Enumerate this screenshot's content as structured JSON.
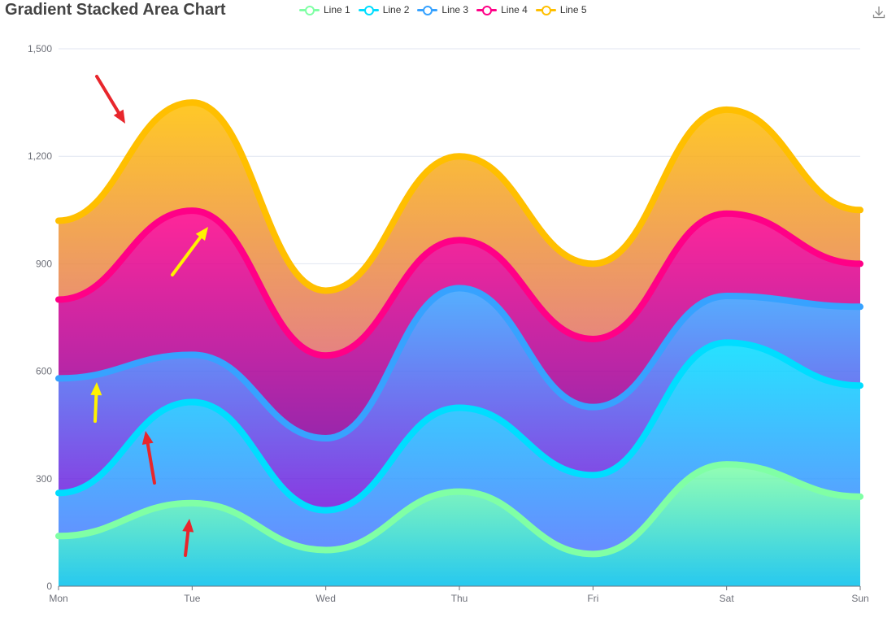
{
  "title": "Gradient Stacked Area Chart",
  "toolbox": {
    "download_icon": "download-icon"
  },
  "chart_data": {
    "type": "area",
    "stacked": true,
    "smooth": true,
    "title": "Gradient Stacked Area Chart",
    "categories": [
      "Mon",
      "Tue",
      "Wed",
      "Thu",
      "Fri",
      "Sat",
      "Sun"
    ],
    "ylim": [
      0,
      1500
    ],
    "yticks": [
      0,
      300,
      600,
      900,
      1200,
      1500
    ],
    "ytick_labels": [
      "0",
      "300",
      "600",
      "900",
      "1,200",
      "1,500"
    ],
    "grid": true,
    "legend_position": "top-center",
    "series": [
      {
        "name": "Line 1",
        "values": [
          140,
          232,
          101,
          264,
          90,
          340,
          250
        ],
        "line_color": "#80FFA5",
        "gradient_top": "#80FFA5",
        "gradient_bottom": "#01BFEC"
      },
      {
        "name": "Line 2",
        "values": [
          120,
          282,
          111,
          234,
          220,
          340,
          310
        ],
        "line_color": "#00DDFF",
        "gradient_top": "#00DDFF",
        "gradient_bottom": "#4D77FF"
      },
      {
        "name": "Line 3",
        "values": [
          320,
          132,
          201,
          334,
          190,
          130,
          220
        ],
        "line_color": "#37A2FF",
        "gradient_top": "#37A2FF",
        "gradient_bottom": "#7415DB"
      },
      {
        "name": "Line 4",
        "values": [
          220,
          402,
          231,
          134,
          190,
          230,
          120
        ],
        "line_color": "#FF0087",
        "gradient_top": "#FF0087",
        "gradient_bottom": "#87009D"
      },
      {
        "name": "Line 5",
        "values": [
          220,
          302,
          181,
          234,
          210,
          290,
          150
        ],
        "line_color": "#FFBF00",
        "gradient_top": "#FFBF00",
        "gradient_bottom": "#E06C6C"
      }
    ],
    "annotations": [
      {
        "type": "arrow",
        "color": "#E8262C",
        "pointing_to": "Line 5 between Mon and Tue"
      },
      {
        "type": "arrow",
        "color": "#FFF200",
        "pointing_to": "Line 4 near Tue"
      },
      {
        "type": "arrow",
        "color": "#FFF200",
        "pointing_to": "Line 3 between Mon and Tue"
      },
      {
        "type": "arrow",
        "color": "#E8262C",
        "pointing_to": "Line 2 between Mon and Tue"
      },
      {
        "type": "arrow",
        "color": "#E8262C",
        "pointing_to": "Line 1 near Tue"
      }
    ]
  }
}
